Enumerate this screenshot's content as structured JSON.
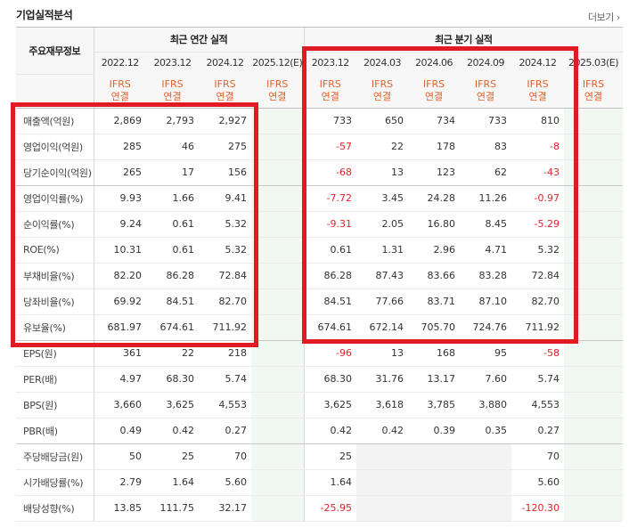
{
  "title": "기업실적분석",
  "more_link": "더보기",
  "header": {
    "label_col": "주요재무정보",
    "annual_group": "최근 연간 실적",
    "quarter_group": "최근 분기 실적",
    "annual_periods": [
      "2022.12",
      "2023.12",
      "2024.12",
      "2025.12(E)"
    ],
    "quarter_periods": [
      "2023.12",
      "2024.03",
      "2024.06",
      "2024.09",
      "2024.12",
      "2025.03(E)"
    ],
    "ifrs_line1": "IFRS",
    "ifrs_line2": "연결"
  },
  "rows": [
    {
      "label": "매출액(억원)",
      "annual": [
        "2,869",
        "2,793",
        "2,927",
        ""
      ],
      "quarter": [
        "733",
        "650",
        "734",
        "733",
        "810",
        ""
      ]
    },
    {
      "label": "영업이익(억원)",
      "annual": [
        "285",
        "46",
        "275",
        ""
      ],
      "quarter": [
        "-57",
        "22",
        "178",
        "83",
        "-8",
        ""
      ]
    },
    {
      "label": "당기순이익(억원)",
      "annual": [
        "265",
        "17",
        "156",
        ""
      ],
      "quarter": [
        "-68",
        "13",
        "123",
        "62",
        "-43",
        ""
      ]
    },
    {
      "label": "영업이익률(%)",
      "annual": [
        "9.93",
        "1.66",
        "9.41",
        ""
      ],
      "quarter": [
        "-7.72",
        "3.45",
        "24.28",
        "11.26",
        "-0.97",
        ""
      ]
    },
    {
      "label": "순이익률(%)",
      "annual": [
        "9.24",
        "0.61",
        "5.32",
        ""
      ],
      "quarter": [
        "-9.31",
        "2.05",
        "16.80",
        "8.45",
        "-5.29",
        ""
      ]
    },
    {
      "label": "ROE(%)",
      "annual": [
        "10.31",
        "0.61",
        "5.32",
        ""
      ],
      "quarter": [
        "0.61",
        "1.31",
        "2.96",
        "4.71",
        "5.32",
        ""
      ]
    },
    {
      "label": "부채비율(%)",
      "annual": [
        "82.20",
        "86.28",
        "72.84",
        ""
      ],
      "quarter": [
        "86.28",
        "87.43",
        "83.66",
        "83.28",
        "72.84",
        ""
      ]
    },
    {
      "label": "당좌비율(%)",
      "annual": [
        "69.92",
        "84.51",
        "82.70",
        ""
      ],
      "quarter": [
        "84.51",
        "77.66",
        "83.71",
        "87.10",
        "82.70",
        ""
      ]
    },
    {
      "label": "유보율(%)",
      "annual": [
        "681.97",
        "674.61",
        "711.92",
        ""
      ],
      "quarter": [
        "674.61",
        "672.14",
        "705.70",
        "724.76",
        "711.92",
        ""
      ]
    },
    {
      "label": "EPS(원)",
      "annual": [
        "361",
        "22",
        "218",
        ""
      ],
      "quarter": [
        "-96",
        "13",
        "168",
        "95",
        "-58",
        ""
      ]
    },
    {
      "label": "PER(배)",
      "annual": [
        "4.97",
        "68.30",
        "5.74",
        ""
      ],
      "quarter": [
        "68.30",
        "31.76",
        "13.17",
        "7.60",
        "5.74",
        ""
      ]
    },
    {
      "label": "BPS(원)",
      "annual": [
        "3,660",
        "3,625",
        "4,553",
        ""
      ],
      "quarter": [
        "3,625",
        "3,618",
        "3,785",
        "3,880",
        "4,553",
        ""
      ]
    },
    {
      "label": "PBR(배)",
      "annual": [
        "0.49",
        "0.42",
        "0.27",
        ""
      ],
      "quarter": [
        "0.42",
        "0.42",
        "0.39",
        "0.35",
        "0.27",
        ""
      ]
    },
    {
      "label": "주당배당금(원)",
      "annual": [
        "50",
        "25",
        "70",
        ""
      ],
      "quarter": [
        "25",
        "",
        "",
        "",
        "70",
        ""
      ]
    },
    {
      "label": "시가배당률(%)",
      "annual": [
        "2.79",
        "1.64",
        "5.60",
        ""
      ],
      "quarter": [
        "1.64",
        "",
        "",
        "",
        "5.60",
        ""
      ]
    },
    {
      "label": "배당성향(%)",
      "annual": [
        "13.85",
        "111.75",
        "32.17",
        ""
      ],
      "quarter": [
        "-25.95",
        "",
        "",
        "",
        "-120.30",
        ""
      ]
    }
  ],
  "colors": {
    "highlight_box": "#e01b24",
    "ifrs_orange": "#e4612a",
    "estimate_green": "#37a04a",
    "negative_red": "#e0242a"
  }
}
